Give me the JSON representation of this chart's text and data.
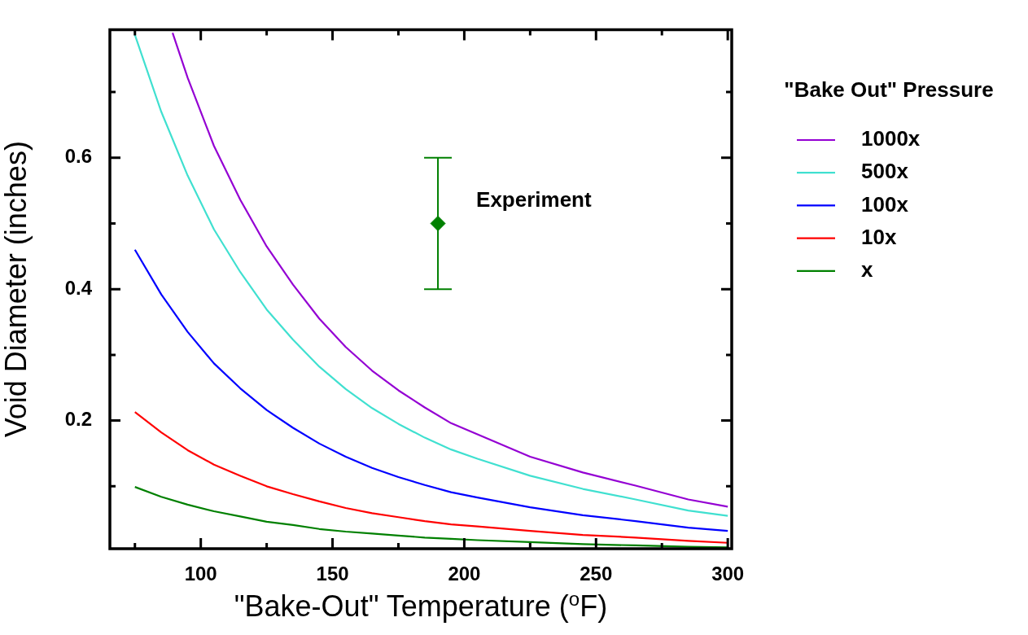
{
  "chart_data": {
    "type": "line",
    "xlabel": "\"Bake-Out\" Temperature ($^{o}$F)",
    "ylabel": "Void Diameter (inches)",
    "legend_title": "\"Bake Out\" Pressure",
    "legend": "right",
    "grid": false,
    "marker": "none",
    "line_style": "solid",
    "xlim": [
      65.5,
      301.5
    ],
    "ylim": [
      0.005,
      0.795
    ],
    "xticks": [
      {
        "value": 75,
        "label": null
      },
      100,
      {
        "value": 125,
        "label": null
      },
      150,
      {
        "value": 175,
        "label": null
      },
      200,
      {
        "value": 225,
        "label": null
      },
      250,
      {
        "value": 275,
        "label": null
      },
      300
    ],
    "yticks": [
      {
        "value": 0.1,
        "label": null
      },
      0.2,
      {
        "value": 0.3,
        "label": null
      },
      0.4,
      {
        "value": 0.5,
        "label": null
      },
      0.6,
      {
        "value": 0.7,
        "label": null
      }
    ],
    "series": [
      {
        "name": "1000x",
        "color": "#9400d3",
        "x": [
          89.3,
          95,
          105,
          115,
          125,
          135,
          145,
          155,
          165,
          175,
          185,
          195,
          205,
          225,
          245,
          265,
          285,
          300
        ],
        "values": [
          0.79,
          0.722,
          0.618,
          0.536,
          0.465,
          0.407,
          0.355,
          0.312,
          0.276,
          0.246,
          0.22,
          0.196,
          0.179,
          0.145,
          0.121,
          0.101,
          0.08,
          0.069
        ]
      },
      {
        "name": "500x",
        "color": "#40e0d0",
        "x": [
          75,
          85,
          95,
          105,
          115,
          125,
          135,
          145,
          155,
          165,
          175,
          185,
          195,
          205,
          225,
          245,
          265,
          285,
          300
        ],
        "values": [
          0.787,
          0.67,
          0.573,
          0.491,
          0.426,
          0.369,
          0.323,
          0.282,
          0.248,
          0.219,
          0.195,
          0.174,
          0.156,
          0.142,
          0.116,
          0.096,
          0.08,
          0.063,
          0.055
        ]
      },
      {
        "name": "100x",
        "color": "#0000ff",
        "x": [
          75,
          85,
          95,
          105,
          115,
          125,
          135,
          145,
          155,
          165,
          175,
          185,
          195,
          205,
          225,
          245,
          265,
          285,
          300
        ],
        "values": [
          0.46,
          0.392,
          0.335,
          0.287,
          0.249,
          0.216,
          0.189,
          0.165,
          0.145,
          0.128,
          0.114,
          0.102,
          0.091,
          0.083,
          0.068,
          0.056,
          0.047,
          0.037,
          0.032
        ]
      },
      {
        "name": "10x",
        "color": "#ff0000",
        "x": [
          75,
          85,
          95,
          105,
          115,
          125,
          135,
          145,
          155,
          165,
          175,
          185,
          195,
          205,
          225,
          245,
          265,
          285,
          300
        ],
        "values": [
          0.213,
          0.182,
          0.155,
          0.133,
          0.116,
          0.1,
          0.088,
          0.077,
          0.067,
          0.059,
          0.053,
          0.047,
          0.042,
          0.039,
          0.032,
          0.026,
          0.022,
          0.017,
          0.014
        ]
      },
      {
        "name": "x",
        "color": "#008000",
        "x": [
          75,
          85,
          95,
          105,
          115,
          125,
          135,
          145,
          155,
          165,
          175,
          185,
          195,
          205,
          225,
          245,
          265,
          285,
          300
        ],
        "values": [
          0.099,
          0.084,
          0.072,
          0.062,
          0.054,
          0.046,
          0.041,
          0.035,
          0.031,
          0.028,
          0.025,
          0.022,
          0.02,
          0.018,
          0.015,
          0.012,
          0.01,
          0.008,
          0.007
        ]
      },
      {
        "name": "Experiment",
        "type": "scatter",
        "marker": "diamond",
        "color": "#008000",
        "x": [
          190
        ],
        "values": [
          0.5
        ],
        "errors": [
          0.1
        ]
      }
    ]
  }
}
